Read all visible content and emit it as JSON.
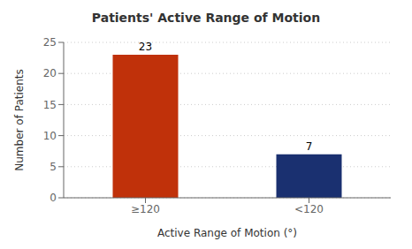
{
  "chart_data": {
    "type": "bar",
    "title": "Patients' Active Range of Motion",
    "categories": [
      "≥120",
      "<120"
    ],
    "values": [
      23,
      7
    ],
    "colors": [
      "#c0310a",
      "#1a3070"
    ],
    "xlabel": "Active Range of Motion (°)",
    "ylabel": "Number of Patients",
    "ylim": [
      0,
      25
    ],
    "yticks": [
      0,
      5,
      10,
      15,
      20,
      25
    ],
    "grid": true,
    "data_labels": true
  }
}
